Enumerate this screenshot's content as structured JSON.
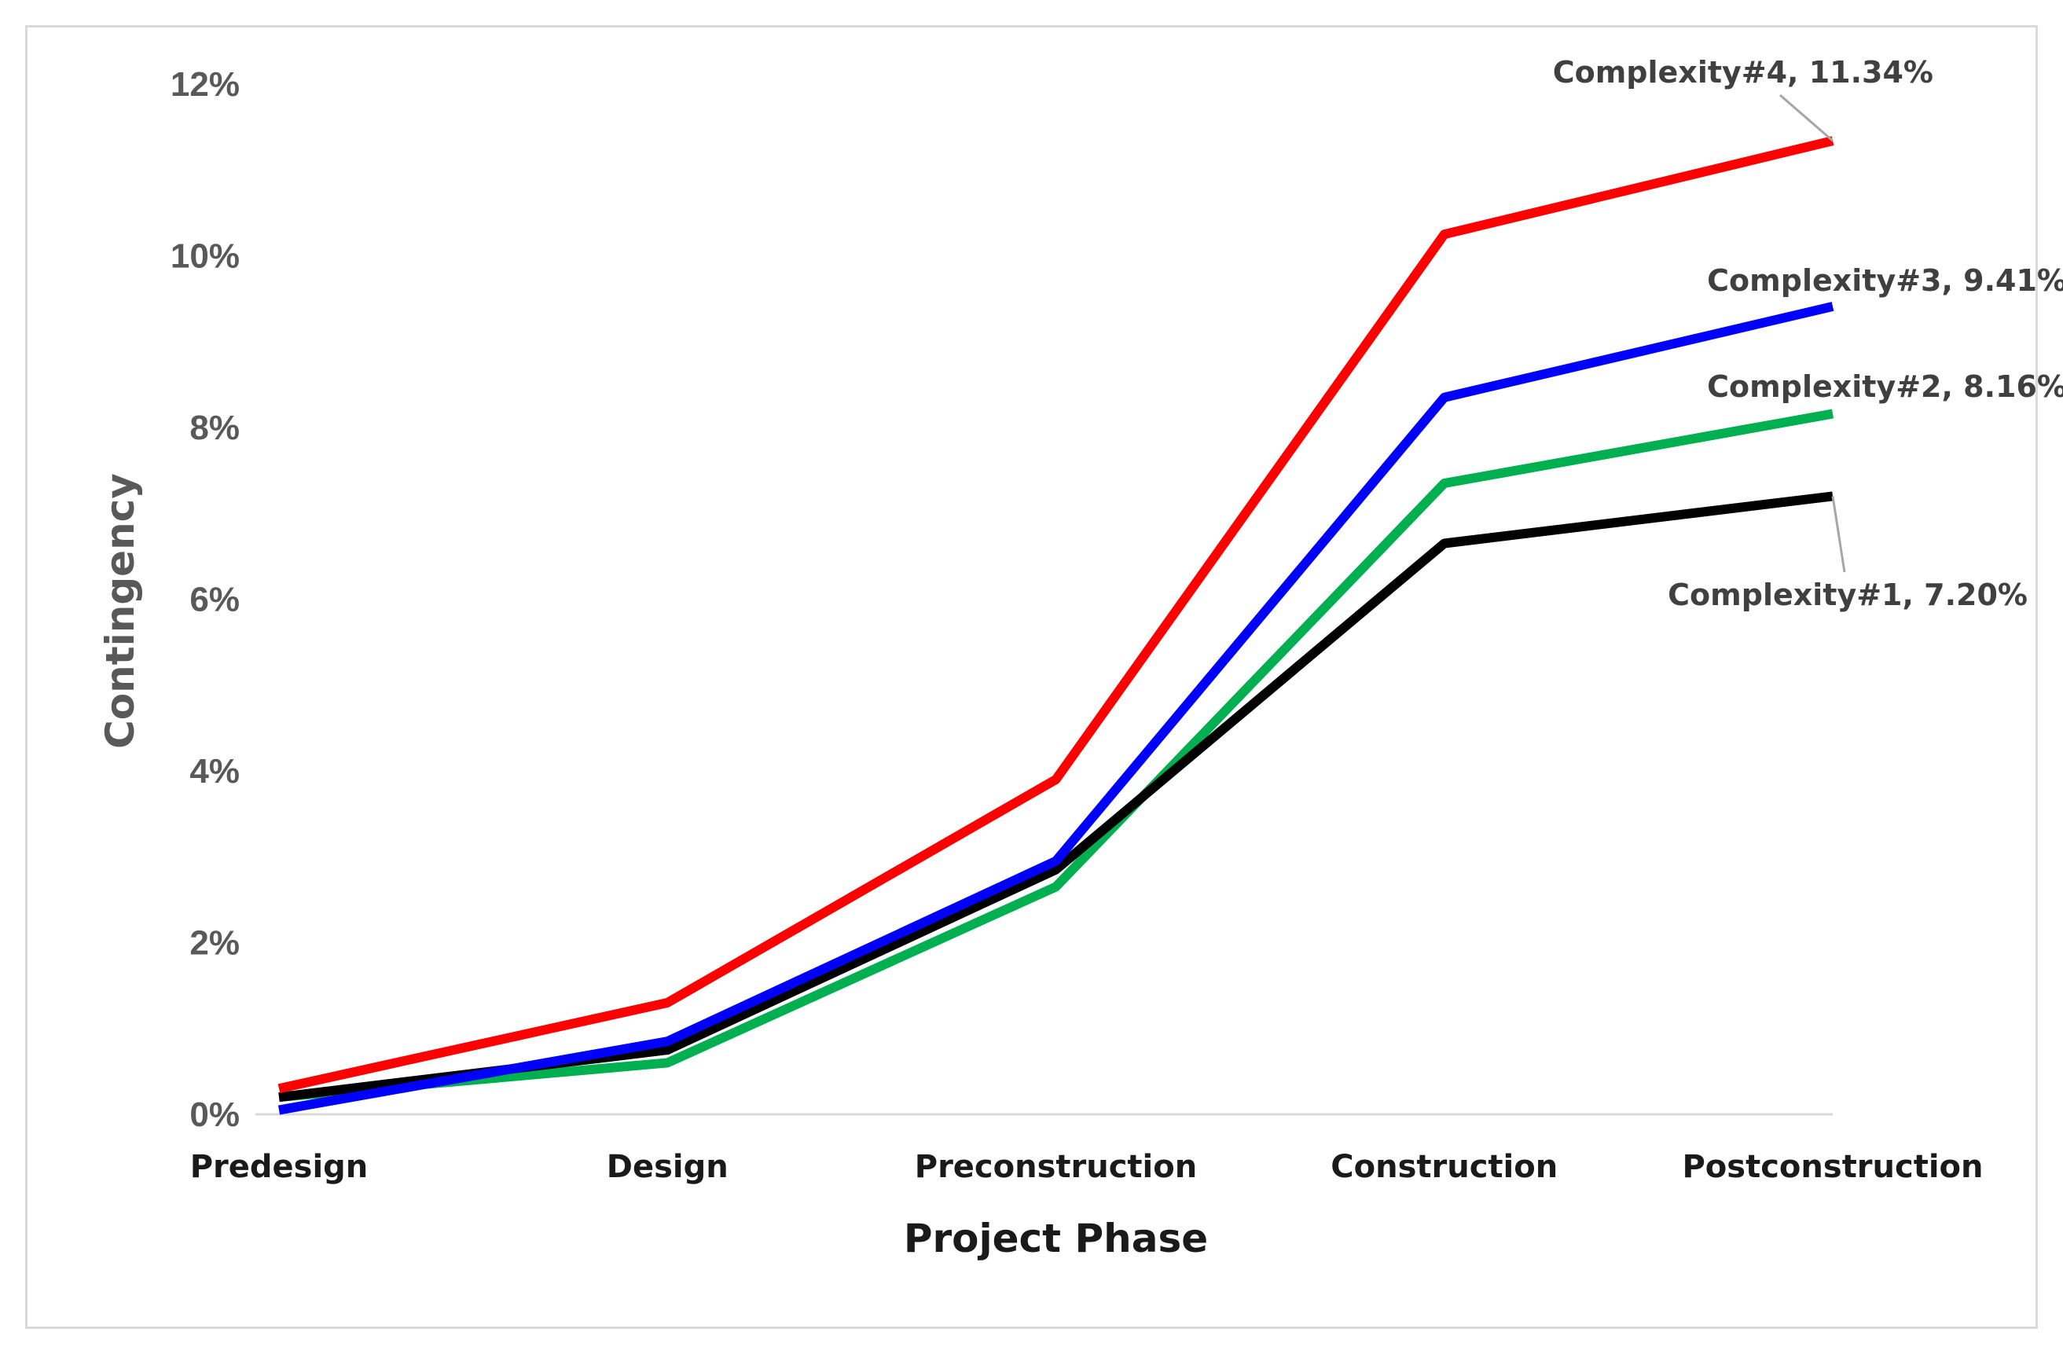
{
  "chart_data": {
    "type": "line",
    "title": "",
    "xlabel": "Project Phase",
    "ylabel": "Contingency",
    "categories": [
      "Predesign",
      "Design",
      "Preconstruction",
      "Construction",
      "Postconstruction"
    ],
    "ylim": [
      0,
      12
    ],
    "yticks": [
      0,
      2,
      4,
      6,
      8,
      10,
      12
    ],
    "ytick_labels": [
      "0%",
      "2%",
      "4%",
      "6%",
      "8%",
      "10%",
      "12%"
    ],
    "grid": false,
    "legend": "none",
    "series": [
      {
        "name": "Complexity#1",
        "color": "#000000",
        "values": [
          0.2,
          0.75,
          2.85,
          6.65,
          7.2
        ],
        "label": "Complexity#1, 7.20%"
      },
      {
        "name": "Complexity#2",
        "color": "#00b050",
        "values": [
          0.2,
          0.6,
          2.65,
          7.35,
          8.16
        ],
        "label": "Complexity#2, 8.16%"
      },
      {
        "name": "Complexity#3",
        "color": "#0000ff",
        "values": [
          0.05,
          0.85,
          2.95,
          8.35,
          9.41
        ],
        "label": "Complexity#3, 9.41%"
      },
      {
        "name": "Complexity#4",
        "color": "#ff0000",
        "values": [
          0.3,
          1.3,
          3.9,
          10.25,
          11.34
        ],
        "label": "Complexity#4, 11.34%"
      }
    ]
  }
}
